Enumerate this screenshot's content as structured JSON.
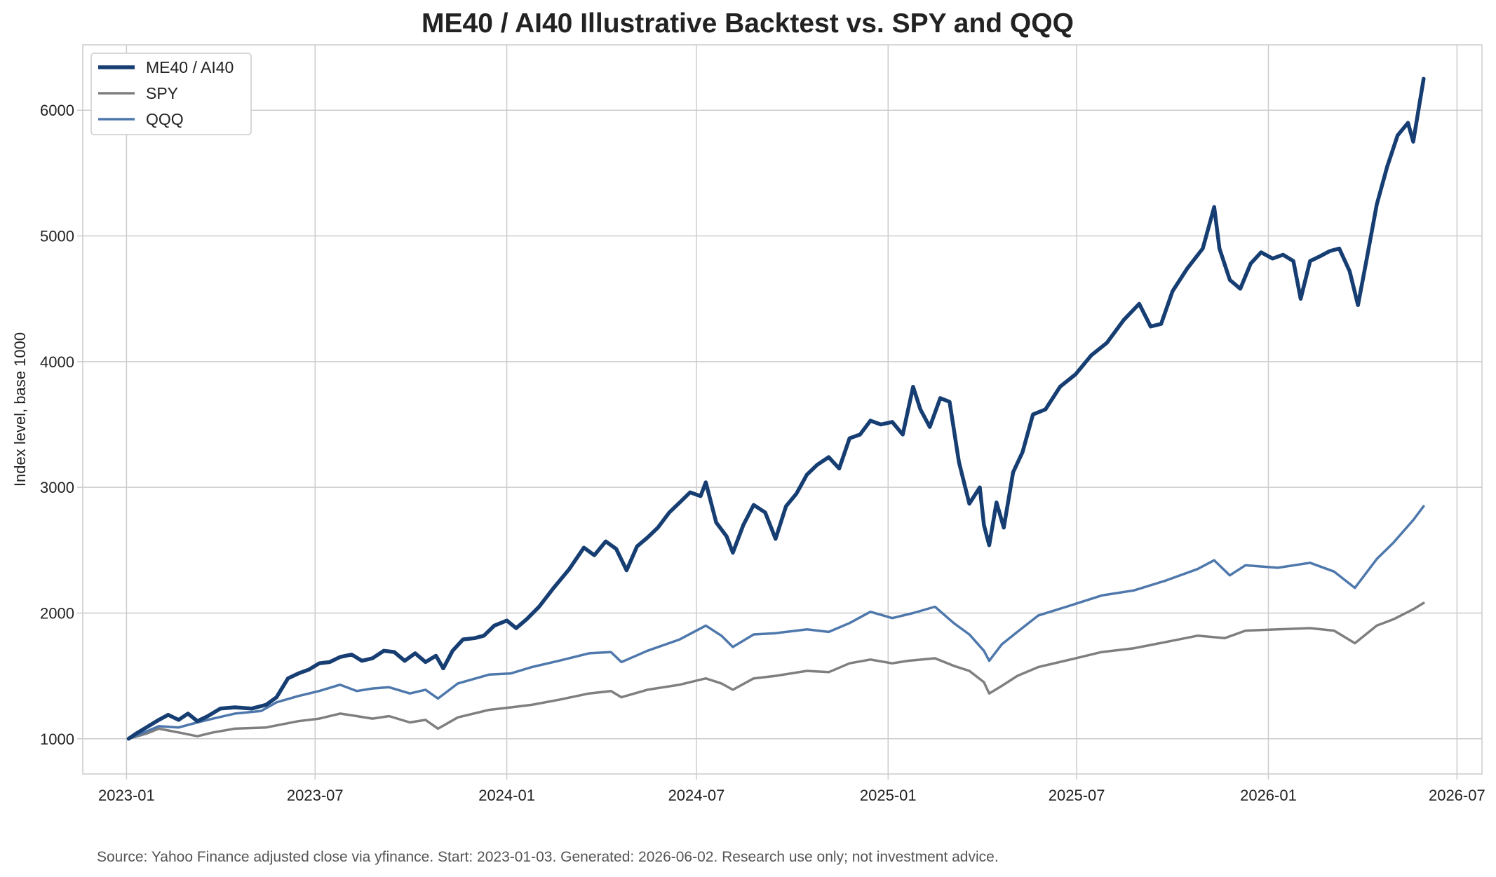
{
  "chart_data": {
    "type": "line",
    "title": "ME40 / AI40 Illustrative Backtest vs. SPY and QQQ",
    "xlabel": "",
    "ylabel": "Index level, base 1000",
    "x_ticks": [
      "2023-01",
      "2023-07",
      "2024-01",
      "2024-07",
      "2025-01",
      "2025-07",
      "2026-01",
      "2026-07"
    ],
    "y_ticks": [
      1000,
      2000,
      3000,
      4000,
      5000,
      6000
    ],
    "xlim": [
      "2022-11-20",
      "2026-07-25"
    ],
    "ylim": [
      720,
      6520
    ],
    "grid": true,
    "legend_position": "top-left",
    "footer": "Source: Yahoo Finance adjusted close via yfinance. Start: 2023-01-03. Generated: 2026-06-02. Research use only; not investment advice.",
    "series": [
      {
        "name": "ME40 / AI40",
        "color": "#163e72",
        "points": [
          [
            "2023-01-03",
            1000
          ],
          [
            "2023-01-10",
            1040
          ],
          [
            "2023-01-20",
            1090
          ],
          [
            "2023-02-01",
            1150
          ],
          [
            "2023-02-10",
            1190
          ],
          [
            "2023-02-20",
            1150
          ],
          [
            "2023-03-01",
            1200
          ],
          [
            "2023-03-10",
            1140
          ],
          [
            "2023-03-20",
            1180
          ],
          [
            "2023-04-01",
            1240
          ],
          [
            "2023-04-15",
            1250
          ],
          [
            "2023-05-01",
            1240
          ],
          [
            "2023-05-15",
            1270
          ],
          [
            "2023-05-25",
            1330
          ],
          [
            "2023-06-05",
            1480
          ],
          [
            "2023-06-15",
            1520
          ],
          [
            "2023-06-25",
            1550
          ],
          [
            "2023-07-05",
            1600
          ],
          [
            "2023-07-15",
            1610
          ],
          [
            "2023-07-25",
            1650
          ],
          [
            "2023-08-05",
            1670
          ],
          [
            "2023-08-15",
            1620
          ],
          [
            "2023-08-25",
            1640
          ],
          [
            "2023-09-05",
            1700
          ],
          [
            "2023-09-15",
            1690
          ],
          [
            "2023-09-25",
            1620
          ],
          [
            "2023-10-05",
            1680
          ],
          [
            "2023-10-15",
            1610
          ],
          [
            "2023-10-25",
            1660
          ],
          [
            "2023-11-01",
            1560
          ],
          [
            "2023-11-10",
            1700
          ],
          [
            "2023-11-20",
            1790
          ],
          [
            "2023-12-01",
            1800
          ],
          [
            "2023-12-10",
            1820
          ],
          [
            "2023-12-20",
            1900
          ],
          [
            "2024-01-01",
            1940
          ],
          [
            "2024-01-10",
            1880
          ],
          [
            "2024-01-20",
            1950
          ],
          [
            "2024-02-01",
            2050
          ],
          [
            "2024-02-15",
            2200
          ],
          [
            "2024-03-01",
            2350
          ],
          [
            "2024-03-15",
            2520
          ],
          [
            "2024-03-25",
            2460
          ],
          [
            "2024-04-05",
            2570
          ],
          [
            "2024-04-15",
            2510
          ],
          [
            "2024-04-25",
            2340
          ],
          [
            "2024-05-05",
            2530
          ],
          [
            "2024-05-15",
            2600
          ],
          [
            "2024-05-25",
            2680
          ],
          [
            "2024-06-05",
            2800
          ],
          [
            "2024-06-15",
            2880
          ],
          [
            "2024-06-25",
            2960
          ],
          [
            "2024-07-05",
            2930
          ],
          [
            "2024-07-10",
            3040
          ],
          [
            "2024-07-20",
            2720
          ],
          [
            "2024-07-30",
            2610
          ],
          [
            "2024-08-05",
            2480
          ],
          [
            "2024-08-15",
            2700
          ],
          [
            "2024-08-25",
            2860
          ],
          [
            "2024-09-05",
            2800
          ],
          [
            "2024-09-15",
            2590
          ],
          [
            "2024-09-25",
            2850
          ],
          [
            "2024-10-05",
            2950
          ],
          [
            "2024-10-15",
            3100
          ],
          [
            "2024-10-25",
            3180
          ],
          [
            "2024-11-05",
            3240
          ],
          [
            "2024-11-15",
            3150
          ],
          [
            "2024-11-25",
            3390
          ],
          [
            "2024-12-05",
            3420
          ],
          [
            "2024-12-15",
            3530
          ],
          [
            "2024-12-25",
            3500
          ],
          [
            "2025-01-05",
            3520
          ],
          [
            "2025-01-15",
            3420
          ],
          [
            "2025-01-25",
            3800
          ],
          [
            "2025-02-01",
            3620
          ],
          [
            "2025-02-10",
            3480
          ],
          [
            "2025-02-20",
            3710
          ],
          [
            "2025-03-01",
            3680
          ],
          [
            "2025-03-10",
            3200
          ],
          [
            "2025-03-20",
            2870
          ],
          [
            "2025-03-30",
            3000
          ],
          [
            "2025-04-03",
            2700
          ],
          [
            "2025-04-08",
            2540
          ],
          [
            "2025-04-15",
            2880
          ],
          [
            "2025-04-22",
            2680
          ],
          [
            "2025-05-01",
            3120
          ],
          [
            "2025-05-10",
            3280
          ],
          [
            "2025-05-20",
            3580
          ],
          [
            "2025-06-01",
            3620
          ],
          [
            "2025-06-15",
            3800
          ],
          [
            "2025-06-30",
            3900
          ],
          [
            "2025-07-15",
            4050
          ],
          [
            "2025-07-30",
            4150
          ],
          [
            "2025-08-15",
            4330
          ],
          [
            "2025-08-30",
            4460
          ],
          [
            "2025-09-10",
            4280
          ],
          [
            "2025-09-20",
            4300
          ],
          [
            "2025-10-01",
            4560
          ],
          [
            "2025-10-15",
            4740
          ],
          [
            "2025-10-30",
            4900
          ],
          [
            "2025-11-10",
            5230
          ],
          [
            "2025-11-15",
            4900
          ],
          [
            "2025-11-25",
            4650
          ],
          [
            "2025-12-05",
            4580
          ],
          [
            "2025-12-15",
            4780
          ],
          [
            "2025-12-25",
            4870
          ],
          [
            "2026-01-05",
            4820
          ],
          [
            "2026-01-15",
            4850
          ],
          [
            "2026-01-25",
            4800
          ],
          [
            "2026-02-01",
            4500
          ],
          [
            "2026-02-10",
            4800
          ],
          [
            "2026-02-20",
            4840
          ],
          [
            "2026-03-01",
            4880
          ],
          [
            "2026-03-10",
            4900
          ],
          [
            "2026-03-20",
            4720
          ],
          [
            "2026-03-28",
            4450
          ],
          [
            "2026-04-05",
            4800
          ],
          [
            "2026-04-15",
            5250
          ],
          [
            "2026-04-25",
            5550
          ],
          [
            "2026-05-05",
            5800
          ],
          [
            "2026-05-15",
            5900
          ],
          [
            "2026-05-20",
            5750
          ],
          [
            "2026-05-30",
            6250
          ]
        ]
      },
      {
        "name": "SPY",
        "color": "#7f7f7f",
        "points": [
          [
            "2023-01-03",
            1000
          ],
          [
            "2023-01-20",
            1040
          ],
          [
            "2023-02-01",
            1080
          ],
          [
            "2023-02-20",
            1050
          ],
          [
            "2023-03-10",
            1020
          ],
          [
            "2023-03-25",
            1050
          ],
          [
            "2023-04-15",
            1080
          ],
          [
            "2023-05-15",
            1090
          ],
          [
            "2023-06-15",
            1140
          ],
          [
            "2023-07-05",
            1160
          ],
          [
            "2023-07-25",
            1200
          ],
          [
            "2023-08-10",
            1180
          ],
          [
            "2023-08-25",
            1160
          ],
          [
            "2023-09-10",
            1180
          ],
          [
            "2023-09-30",
            1130
          ],
          [
            "2023-10-15",
            1150
          ],
          [
            "2023-10-27",
            1080
          ],
          [
            "2023-11-15",
            1170
          ],
          [
            "2023-12-15",
            1230
          ],
          [
            "2024-01-05",
            1250
          ],
          [
            "2024-01-25",
            1270
          ],
          [
            "2024-02-20",
            1310
          ],
          [
            "2024-03-20",
            1360
          ],
          [
            "2024-04-10",
            1380
          ],
          [
            "2024-04-20",
            1330
          ],
          [
            "2024-05-15",
            1390
          ],
          [
            "2024-06-15",
            1430
          ],
          [
            "2024-07-10",
            1480
          ],
          [
            "2024-07-25",
            1440
          ],
          [
            "2024-08-05",
            1390
          ],
          [
            "2024-08-25",
            1480
          ],
          [
            "2024-09-15",
            1500
          ],
          [
            "2024-10-15",
            1540
          ],
          [
            "2024-11-05",
            1530
          ],
          [
            "2024-11-25",
            1600
          ],
          [
            "2024-12-15",
            1630
          ],
          [
            "2025-01-05",
            1600
          ],
          [
            "2025-01-20",
            1620
          ],
          [
            "2025-02-15",
            1640
          ],
          [
            "2025-03-05",
            1580
          ],
          [
            "2025-03-20",
            1540
          ],
          [
            "2025-04-03",
            1450
          ],
          [
            "2025-04-08",
            1360
          ],
          [
            "2025-04-20",
            1420
          ],
          [
            "2025-05-05",
            1500
          ],
          [
            "2025-05-25",
            1570
          ],
          [
            "2025-06-25",
            1630
          ],
          [
            "2025-07-25",
            1690
          ],
          [
            "2025-08-25",
            1720
          ],
          [
            "2025-09-25",
            1770
          ],
          [
            "2025-10-25",
            1820
          ],
          [
            "2025-11-20",
            1800
          ],
          [
            "2025-12-10",
            1860
          ],
          [
            "2026-01-10",
            1870
          ],
          [
            "2026-02-10",
            1880
          ],
          [
            "2026-03-05",
            1860
          ],
          [
            "2026-03-25",
            1760
          ],
          [
            "2026-04-15",
            1900
          ],
          [
            "2026-05-01",
            1950
          ],
          [
            "2026-05-20",
            2030
          ],
          [
            "2026-05-30",
            2080
          ]
        ]
      },
      {
        "name": "QQQ",
        "color": "#4e78ac",
        "points": [
          [
            "2023-01-03",
            1000
          ],
          [
            "2023-01-15",
            1040
          ],
          [
            "2023-02-01",
            1100
          ],
          [
            "2023-02-20",
            1090
          ],
          [
            "2023-03-10",
            1130
          ],
          [
            "2023-03-25",
            1160
          ],
          [
            "2023-04-15",
            1200
          ],
          [
            "2023-05-10",
            1220
          ],
          [
            "2023-05-25",
            1290
          ],
          [
            "2023-06-15",
            1340
          ],
          [
            "2023-07-05",
            1380
          ],
          [
            "2023-07-25",
            1430
          ],
          [
            "2023-08-10",
            1380
          ],
          [
            "2023-08-25",
            1400
          ],
          [
            "2023-09-10",
            1410
          ],
          [
            "2023-09-30",
            1360
          ],
          [
            "2023-10-15",
            1390
          ],
          [
            "2023-10-27",
            1320
          ],
          [
            "2023-11-15",
            1440
          ],
          [
            "2023-12-15",
            1510
          ],
          [
            "2024-01-05",
            1520
          ],
          [
            "2024-01-25",
            1570
          ],
          [
            "2024-02-20",
            1620
          ],
          [
            "2024-03-20",
            1680
          ],
          [
            "2024-04-10",
            1690
          ],
          [
            "2024-04-20",
            1610
          ],
          [
            "2024-05-15",
            1700
          ],
          [
            "2024-06-15",
            1790
          ],
          [
            "2024-07-10",
            1900
          ],
          [
            "2024-07-25",
            1820
          ],
          [
            "2024-08-05",
            1730
          ],
          [
            "2024-08-25",
            1830
          ],
          [
            "2024-09-15",
            1840
          ],
          [
            "2024-10-15",
            1870
          ],
          [
            "2024-11-05",
            1850
          ],
          [
            "2024-11-25",
            1920
          ],
          [
            "2024-12-15",
            2010
          ],
          [
            "2025-01-05",
            1960
          ],
          [
            "2025-01-25",
            2000
          ],
          [
            "2025-02-15",
            2050
          ],
          [
            "2025-03-05",
            1920
          ],
          [
            "2025-03-20",
            1830
          ],
          [
            "2025-04-03",
            1700
          ],
          [
            "2025-04-08",
            1620
          ],
          [
            "2025-04-20",
            1750
          ],
          [
            "2025-05-05",
            1850
          ],
          [
            "2025-05-25",
            1980
          ],
          [
            "2025-06-25",
            2060
          ],
          [
            "2025-07-25",
            2140
          ],
          [
            "2025-08-25",
            2180
          ],
          [
            "2025-09-25",
            2260
          ],
          [
            "2025-10-25",
            2350
          ],
          [
            "2025-11-10",
            2420
          ],
          [
            "2025-11-25",
            2300
          ],
          [
            "2025-12-10",
            2380
          ],
          [
            "2026-01-10",
            2360
          ],
          [
            "2026-02-10",
            2400
          ],
          [
            "2026-03-05",
            2330
          ],
          [
            "2026-03-25",
            2200
          ],
          [
            "2026-04-15",
            2430
          ],
          [
            "2026-05-01",
            2560
          ],
          [
            "2026-05-20",
            2740
          ],
          [
            "2026-05-30",
            2850
          ]
        ]
      }
    ]
  }
}
